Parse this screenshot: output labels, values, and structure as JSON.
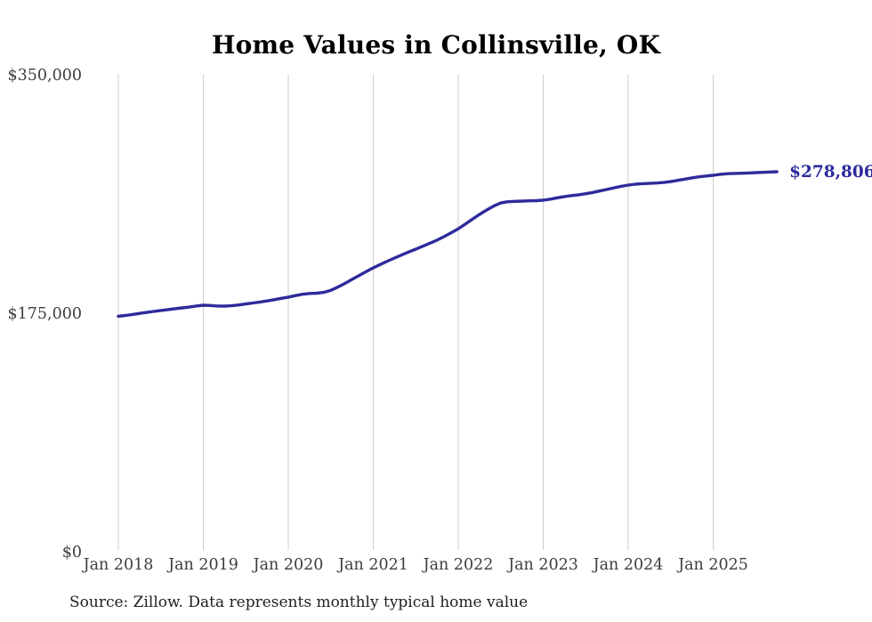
{
  "page": {
    "title": "Home Values in Collinsville, OK",
    "source_note": "Source: Zillow. Data represents monthly typical home value"
  },
  "colors": {
    "line": "#2d2b9b",
    "gridline": "#cccccc",
    "tick_label": "#3d3d3d",
    "end_label": "#2d2b9b",
    "background": "#ffffff"
  },
  "chart_data": {
    "type": "line",
    "title": "Home Values in Collinsville, OK",
    "xlabel": "",
    "ylabel": "",
    "ylim": [
      0,
      350000
    ],
    "grid": "vertical-only",
    "legend": "none",
    "y_ticks": [
      {
        "value": 0,
        "label": "$0"
      },
      {
        "value": 175000,
        "label": "$175,000"
      },
      {
        "value": 350000,
        "label": "$350,000"
      }
    ],
    "x_ticks": [
      {
        "label": "Jan 2018",
        "month_index": 0
      },
      {
        "label": "Jan 2019",
        "month_index": 12
      },
      {
        "label": "Jan 2020",
        "month_index": 24
      },
      {
        "label": "Jan 2021",
        "month_index": 36
      },
      {
        "label": "Jan 2022",
        "month_index": 48
      },
      {
        "label": "Jan 2023",
        "month_index": 60
      },
      {
        "label": "Jan 2024",
        "month_index": 72
      },
      {
        "label": "Jan 2025",
        "month_index": 84
      }
    ],
    "end_label": "$278,806",
    "final_value": 278806,
    "series": [
      {
        "name": "Typical home value",
        "interval": "monthly",
        "start_month": "Jan 2018",
        "end_month": "Oct 2025",
        "values": [
          172800,
          173400,
          174100,
          174900,
          175600,
          176300,
          177000,
          177700,
          178300,
          178900,
          179500,
          180300,
          180900,
          180700,
          180300,
          180200,
          180500,
          181100,
          181800,
          182500,
          183200,
          184000,
          184900,
          185900,
          186800,
          187900,
          188900,
          189500,
          189700,
          190300,
          191800,
          194200,
          196900,
          199800,
          202700,
          205500,
          208300,
          210800,
          213200,
          215500,
          217700,
          219900,
          222000,
          224200,
          226400,
          228600,
          231200,
          234000,
          237000,
          240400,
          244000,
          247500,
          250700,
          253600,
          255900,
          256800,
          257100,
          257300,
          257500,
          257600,
          257900,
          258700,
          259700,
          260600,
          261300,
          261900,
          262700,
          263600,
          264700,
          265800,
          267000,
          268100,
          269000,
          269700,
          270100,
          270300,
          270500,
          270900,
          271600,
          272500,
          273400,
          274300,
          275100,
          275700,
          276200,
          276900,
          277400,
          277600,
          277700,
          277900,
          278200,
          278400,
          278600,
          278806
        ]
      }
    ]
  }
}
